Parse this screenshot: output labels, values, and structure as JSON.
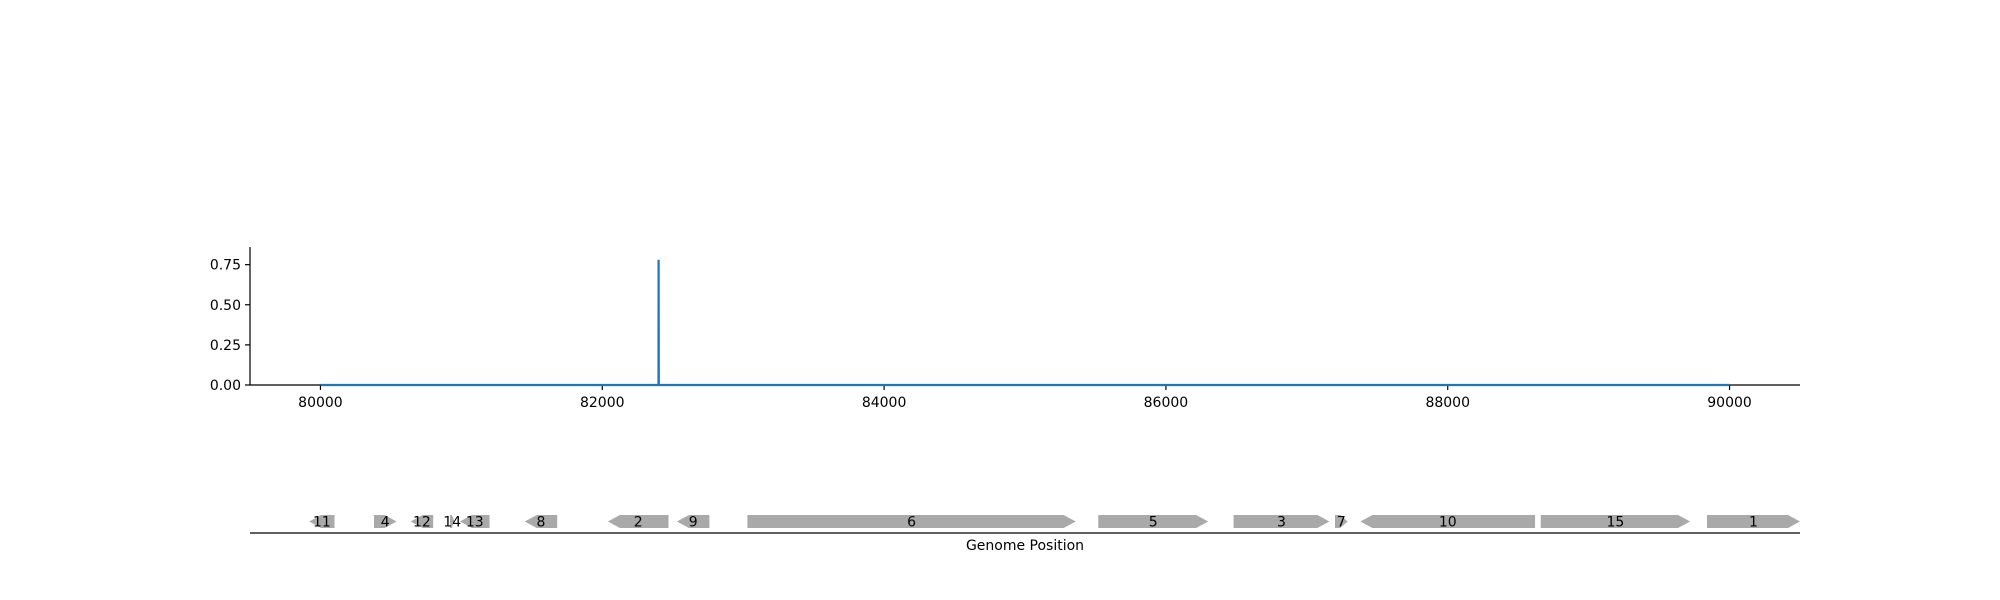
{
  "chart_data": [
    {
      "type": "line",
      "series": [
        {
          "x": [
            80000,
            82399,
            82400,
            82401,
            90000
          ],
          "y": [
            0.0,
            0.0,
            0.78,
            0.0,
            0.0
          ]
        }
      ],
      "xlim": [
        79500,
        90500
      ],
      "ylim": [
        0.0,
        0.86
      ],
      "x_ticks": [
        80000,
        82000,
        84000,
        86000,
        88000,
        90000
      ],
      "y_ticks": [
        0.0,
        0.25,
        0.5,
        0.75
      ],
      "x_tick_labels": [
        "80000",
        "82000",
        "84000",
        "86000",
        "88000",
        "90000"
      ],
      "y_tick_labels": [
        "0.00",
        "0.25",
        "0.50",
        "0.75"
      ],
      "line_color": "#1f77b4",
      "grid": false
    },
    {
      "type": "gene-track",
      "xlabel": "Genome Position",
      "xlim": [
        79500,
        90500
      ],
      "gene_color": "#a9a9a9",
      "genes": [
        {
          "label": "11",
          "start": 79920,
          "end": 80100,
          "strand": -1
        },
        {
          "label": "4",
          "start": 80380,
          "end": 80540,
          "strand": 1
        },
        {
          "label": "12",
          "start": 80640,
          "end": 80800,
          "strand": -1
        },
        {
          "label": "14",
          "start": 80920,
          "end": 80950,
          "strand": 1
        },
        {
          "label": "13",
          "start": 80990,
          "end": 81200,
          "strand": -1
        },
        {
          "label": "8",
          "start": 81450,
          "end": 81680,
          "strand": -1
        },
        {
          "label": "2",
          "start": 82040,
          "end": 82470,
          "strand": -1
        },
        {
          "label": "9",
          "start": 82530,
          "end": 82760,
          "strand": -1
        },
        {
          "label": "6",
          "start": 83030,
          "end": 85360,
          "strand": 1
        },
        {
          "label": "5",
          "start": 85520,
          "end": 86300,
          "strand": 1
        },
        {
          "label": "3",
          "start": 86480,
          "end": 87160,
          "strand": 1
        },
        {
          "label": "7",
          "start": 87200,
          "end": 87290,
          "strand": 1
        },
        {
          "label": "10",
          "start": 87380,
          "end": 88620,
          "strand": -1
        },
        {
          "label": "15",
          "start": 88660,
          "end": 89720,
          "strand": 1
        },
        {
          "label": "1",
          "start": 89840,
          "end": 90500,
          "strand": 1
        }
      ]
    }
  ]
}
